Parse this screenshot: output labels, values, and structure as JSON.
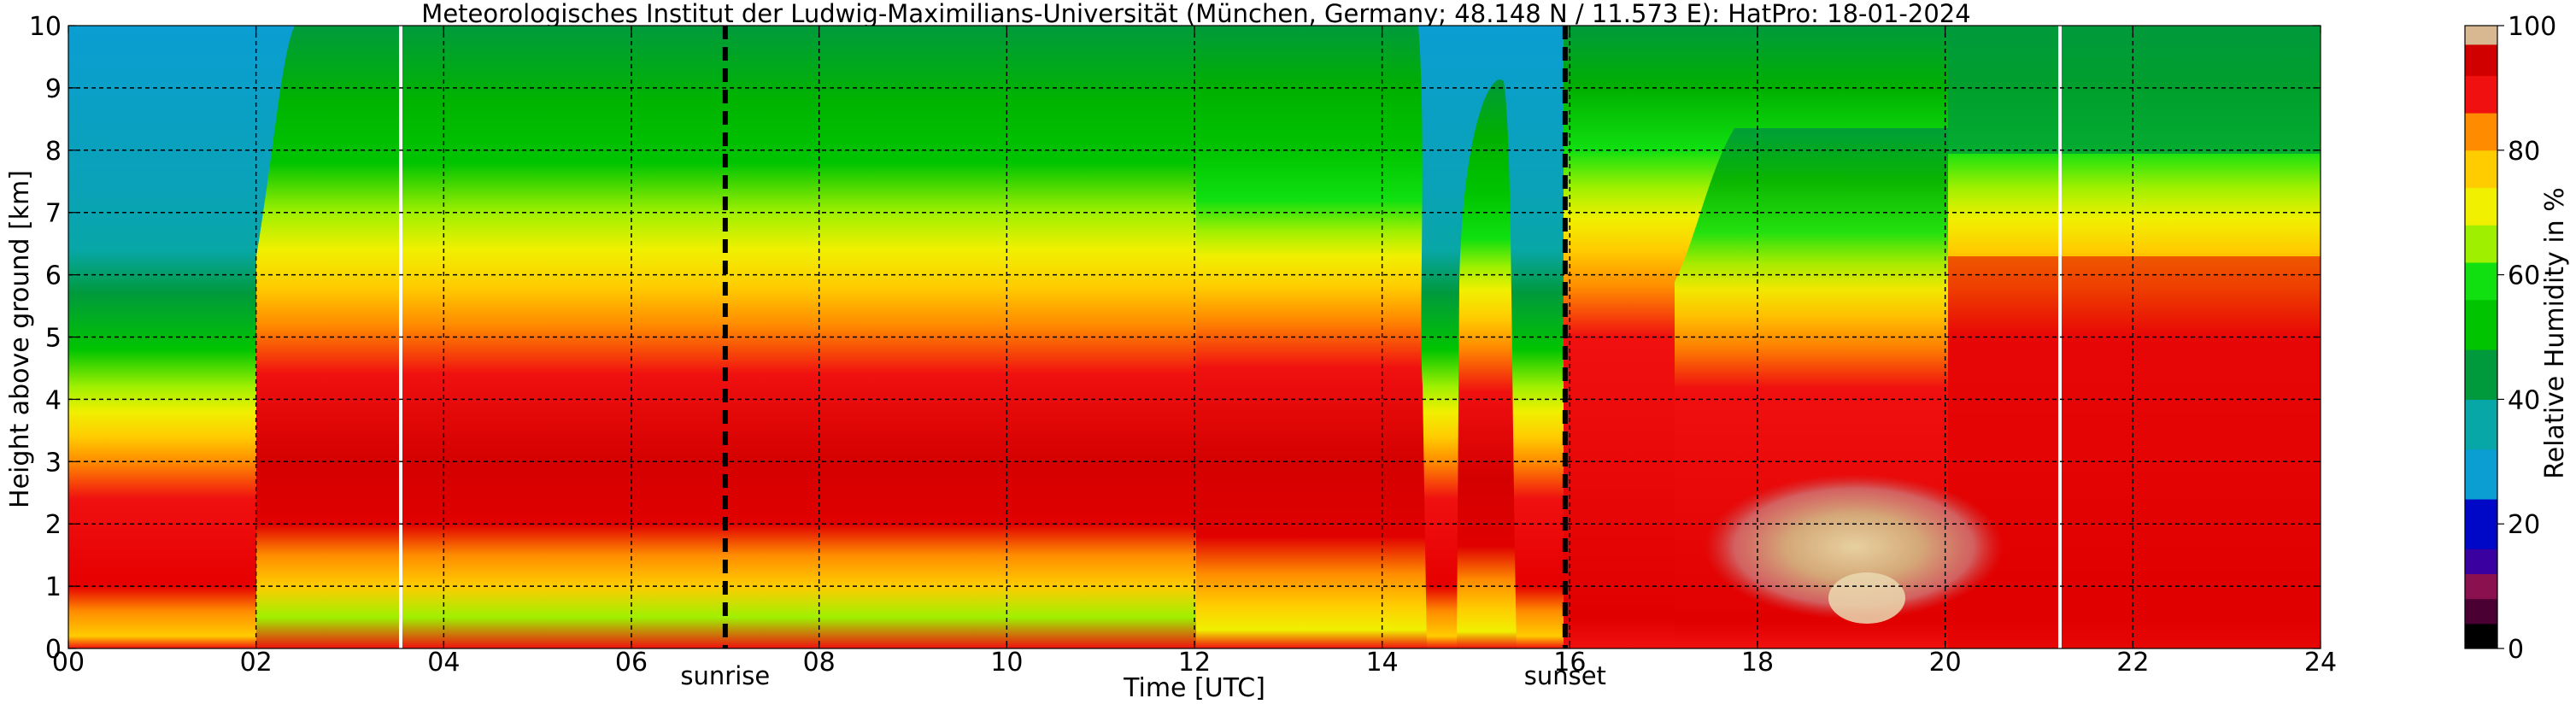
{
  "chart_data": {
    "type": "heatmap",
    "title": "Meteorologisches Institut der Ludwig-Maximilians-Universität (München, Germany; 48.148 N / 11.573 E):    HatPro: 18-01-2024",
    "xlabel": "Time [UTC]",
    "ylabel": "Height above ground [km]",
    "x_ticks": [
      "00",
      "02",
      "04",
      "06",
      "08",
      "10",
      "12",
      "14",
      "16",
      "18",
      "20",
      "22",
      "24"
    ],
    "y_ticks": [
      "0",
      "1",
      "2",
      "3",
      "4",
      "5",
      "6",
      "7",
      "8",
      "9",
      "10"
    ],
    "xlim": [
      0,
      24
    ],
    "ylim": [
      0,
      10
    ],
    "grid": true,
    "colorbar": {
      "label": "Relative Humidity in %",
      "ticks": [
        "0",
        "20",
        "40",
        "60",
        "80",
        "100"
      ],
      "range": [
        0,
        100
      ],
      "colors": [
        {
          "from": 0,
          "to": 4,
          "color": "#000000"
        },
        {
          "from": 4,
          "to": 8,
          "color": "#4b0033"
        },
        {
          "from": 8,
          "to": 12,
          "color": "#8a1050"
        },
        {
          "from": 12,
          "to": 16,
          "color": "#3a00a0"
        },
        {
          "from": 16,
          "to": 24,
          "color": "#0008c8"
        },
        {
          "from": 24,
          "to": 32,
          "color": "#0a9ed2"
        },
        {
          "from": 32,
          "to": 40,
          "color": "#08a7a7"
        },
        {
          "from": 40,
          "to": 48,
          "color": "#009a3c"
        },
        {
          "from": 48,
          "to": 56,
          "color": "#00c400"
        },
        {
          "from": 56,
          "to": 62,
          "color": "#10e010"
        },
        {
          "from": 62,
          "to": 68,
          "color": "#9ff000"
        },
        {
          "from": 68,
          "to": 74,
          "color": "#f0f000"
        },
        {
          "from": 74,
          "to": 80,
          "color": "#ffcc00"
        },
        {
          "from": 80,
          "to": 86,
          "color": "#ff8c00"
        },
        {
          "from": 86,
          "to": 92,
          "color": "#f01010"
        },
        {
          "from": 92,
          "to": 97,
          "color": "#d00000"
        },
        {
          "from": 97,
          "to": 100,
          "color": "#d8b890"
        }
      ]
    },
    "vlines": [
      {
        "x": 7.0,
        "style": "dashed",
        "color": "#000000",
        "label": "sunrise"
      },
      {
        "x": 15.95,
        "style": "dashed",
        "color": "#000000",
        "label": "sunset"
      }
    ],
    "gaps": [
      3.57,
      21.25
    ]
  }
}
